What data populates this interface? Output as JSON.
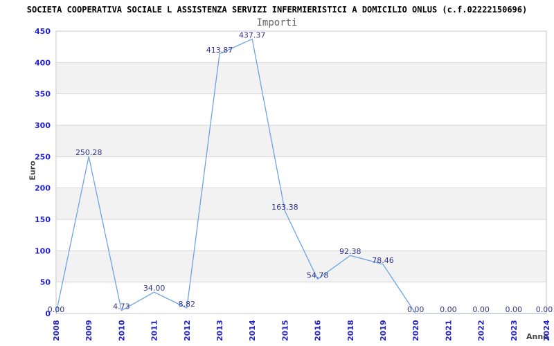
{
  "header": {
    "title": "SOCIETA COOPERATIVA SOCIALE L ASSISTENZA SERVIZI INFERMIERISTICI A DOMICILIO ONLUS (c.f.02222150696)",
    "subtitle": "Importi"
  },
  "chart_data": {
    "type": "line",
    "title": "Importi",
    "categories": [
      "2008",
      "2009",
      "2010",
      "2011",
      "2012",
      "2013",
      "2014",
      "2015",
      "2016",
      "2018",
      "2019",
      "2020",
      "2021",
      "2022",
      "2023",
      "2024"
    ],
    "series": [
      {
        "name": "Importi",
        "values": [
          0.0,
          250.28,
          4.73,
          34.0,
          8.82,
          413.87,
          437.37,
          163.38,
          54.78,
          92.38,
          78.46,
          0.0,
          0.0,
          0.0,
          0.0,
          0.0
        ],
        "value_labels": [
          "0.00",
          "250.28",
          "4.73",
          "34.00",
          "8.82",
          "413.87",
          "437.37",
          "163.38",
          "54.78",
          "92.38",
          "78.46",
          "0.00",
          "0.00",
          "0.00",
          "0.00",
          "0.00"
        ]
      }
    ],
    "xlabel": "Anno",
    "ylabel": "Euro",
    "ylim": [
      0,
      450
    ],
    "ytick_step": 50,
    "yticks": [
      "0",
      "50",
      "100",
      "150",
      "200",
      "250",
      "300",
      "350",
      "400",
      "450"
    ],
    "grid": "horizontal-lines-with-alternating-bands",
    "legend": "none"
  },
  "colors": {
    "line": "#6ba3e5",
    "tick_label": "#2222cc",
    "data_label": "#333388",
    "band": "#f2f2f2",
    "grid": "#d6d6d6",
    "frame": "#c4c4c4",
    "title": "#000000",
    "subtitle": "#666666",
    "axis_title": "#444444",
    "background": "#ffffff"
  }
}
